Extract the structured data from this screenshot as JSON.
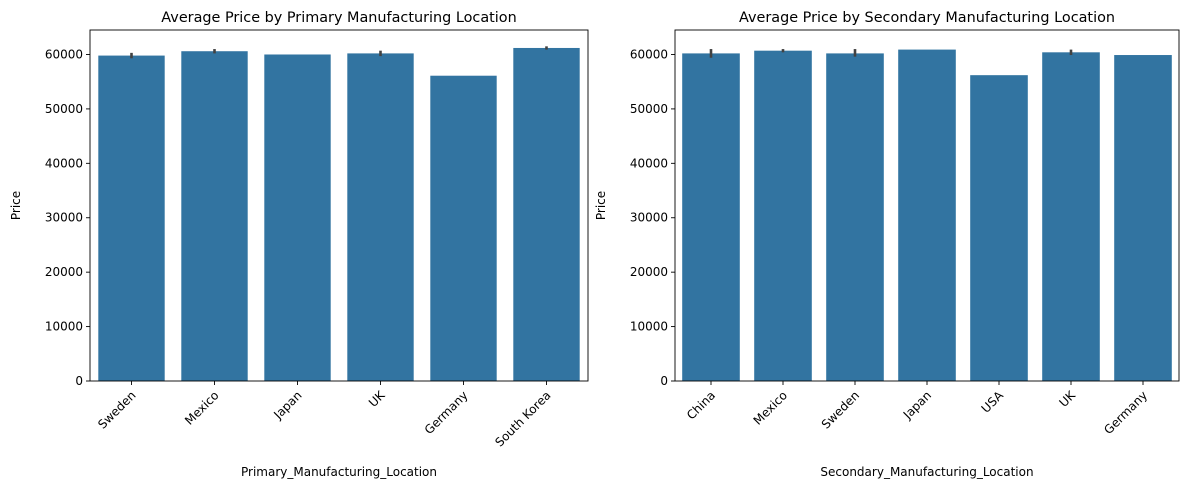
{
  "chart_data": [
    {
      "type": "bar",
      "title": "Average Price by Primary Manufacturing Location",
      "xlabel": "Primary_Manufacturing_Location",
      "ylabel": "Price",
      "categories": [
        "Sweden",
        "Mexico",
        "Japan",
        "UK",
        "Germany",
        "South Korea"
      ],
      "values": [
        59800,
        60600,
        60000,
        60200,
        56100,
        61200
      ],
      "error_bars": [
        [
          59300,
          60300
        ],
        [
          60200,
          61000
        ],
        null,
        [
          59700,
          60700
        ],
        null,
        [
          60900,
          61500
        ]
      ],
      "ylim": [
        0,
        64500
      ],
      "yticks": [
        0,
        10000,
        20000,
        30000,
        40000,
        50000,
        60000
      ],
      "grid": false,
      "bar_color": "#3274a1",
      "error_color": "#424242"
    },
    {
      "type": "bar",
      "title": "Average Price by Secondary Manufacturing Location",
      "xlabel": "Secondary_Manufacturing_Location",
      "ylabel": "Price",
      "categories": [
        "China",
        "Mexico",
        "Sweden",
        "Japan",
        "USA",
        "UK",
        "Germany"
      ],
      "values": [
        60200,
        60700,
        60200,
        60900,
        56200,
        60400,
        59900
      ],
      "error_bars": [
        [
          59400,
          61000
        ],
        [
          60400,
          61000
        ],
        [
          59600,
          61000
        ],
        null,
        null,
        [
          59900,
          60900
        ],
        null
      ],
      "ylim": [
        0,
        64500
      ],
      "yticks": [
        0,
        10000,
        20000,
        30000,
        40000,
        50000,
        60000
      ],
      "grid": false,
      "bar_color": "#3274a1",
      "error_color": "#424242"
    }
  ]
}
